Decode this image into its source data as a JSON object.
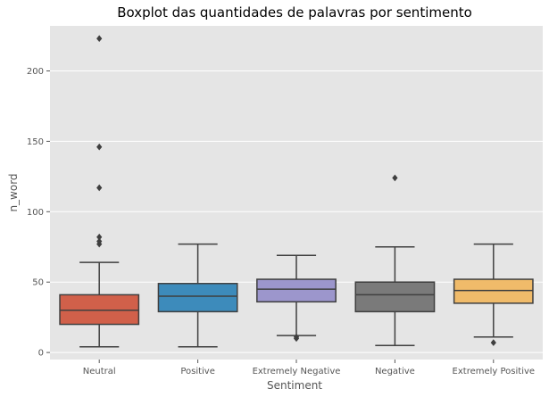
{
  "chart_data": {
    "type": "box",
    "title": "Boxplot das quantidades de palavras por sentimento",
    "xlabel": "Sentiment",
    "ylabel": "n_word",
    "ylim": [
      -5,
      232
    ],
    "yticks": [
      0,
      50,
      100,
      150,
      200
    ],
    "grid": true,
    "series": [
      {
        "category": "Neutral",
        "color": "#d1604a",
        "whisker_low": 4,
        "q1": 20,
        "median": 30,
        "q3": 41,
        "whisker_high": 64,
        "outliers": [
          77,
          79,
          82,
          117,
          146,
          223
        ]
      },
      {
        "category": "Positive",
        "color": "#3d8bbb",
        "whisker_low": 4,
        "q1": 29,
        "median": 40,
        "q3": 49,
        "whisker_high": 77,
        "outliers": []
      },
      {
        "category": "Extremely Negative",
        "color": "#9c96cc",
        "whisker_low": 12,
        "q1": 36,
        "median": 45,
        "q3": 52,
        "whisker_high": 69,
        "outliers": [
          10,
          11
        ]
      },
      {
        "category": "Negative",
        "color": "#7a7a7a",
        "whisker_low": 5,
        "q1": 29,
        "median": 41,
        "q3": 50,
        "whisker_high": 75,
        "outliers": [
          124
        ]
      },
      {
        "category": "Extremely Positive",
        "color": "#f0bb6a",
        "whisker_low": 11,
        "q1": 35,
        "median": 44,
        "q3": 52,
        "whisker_high": 77,
        "outliers": [
          7
        ]
      }
    ]
  }
}
